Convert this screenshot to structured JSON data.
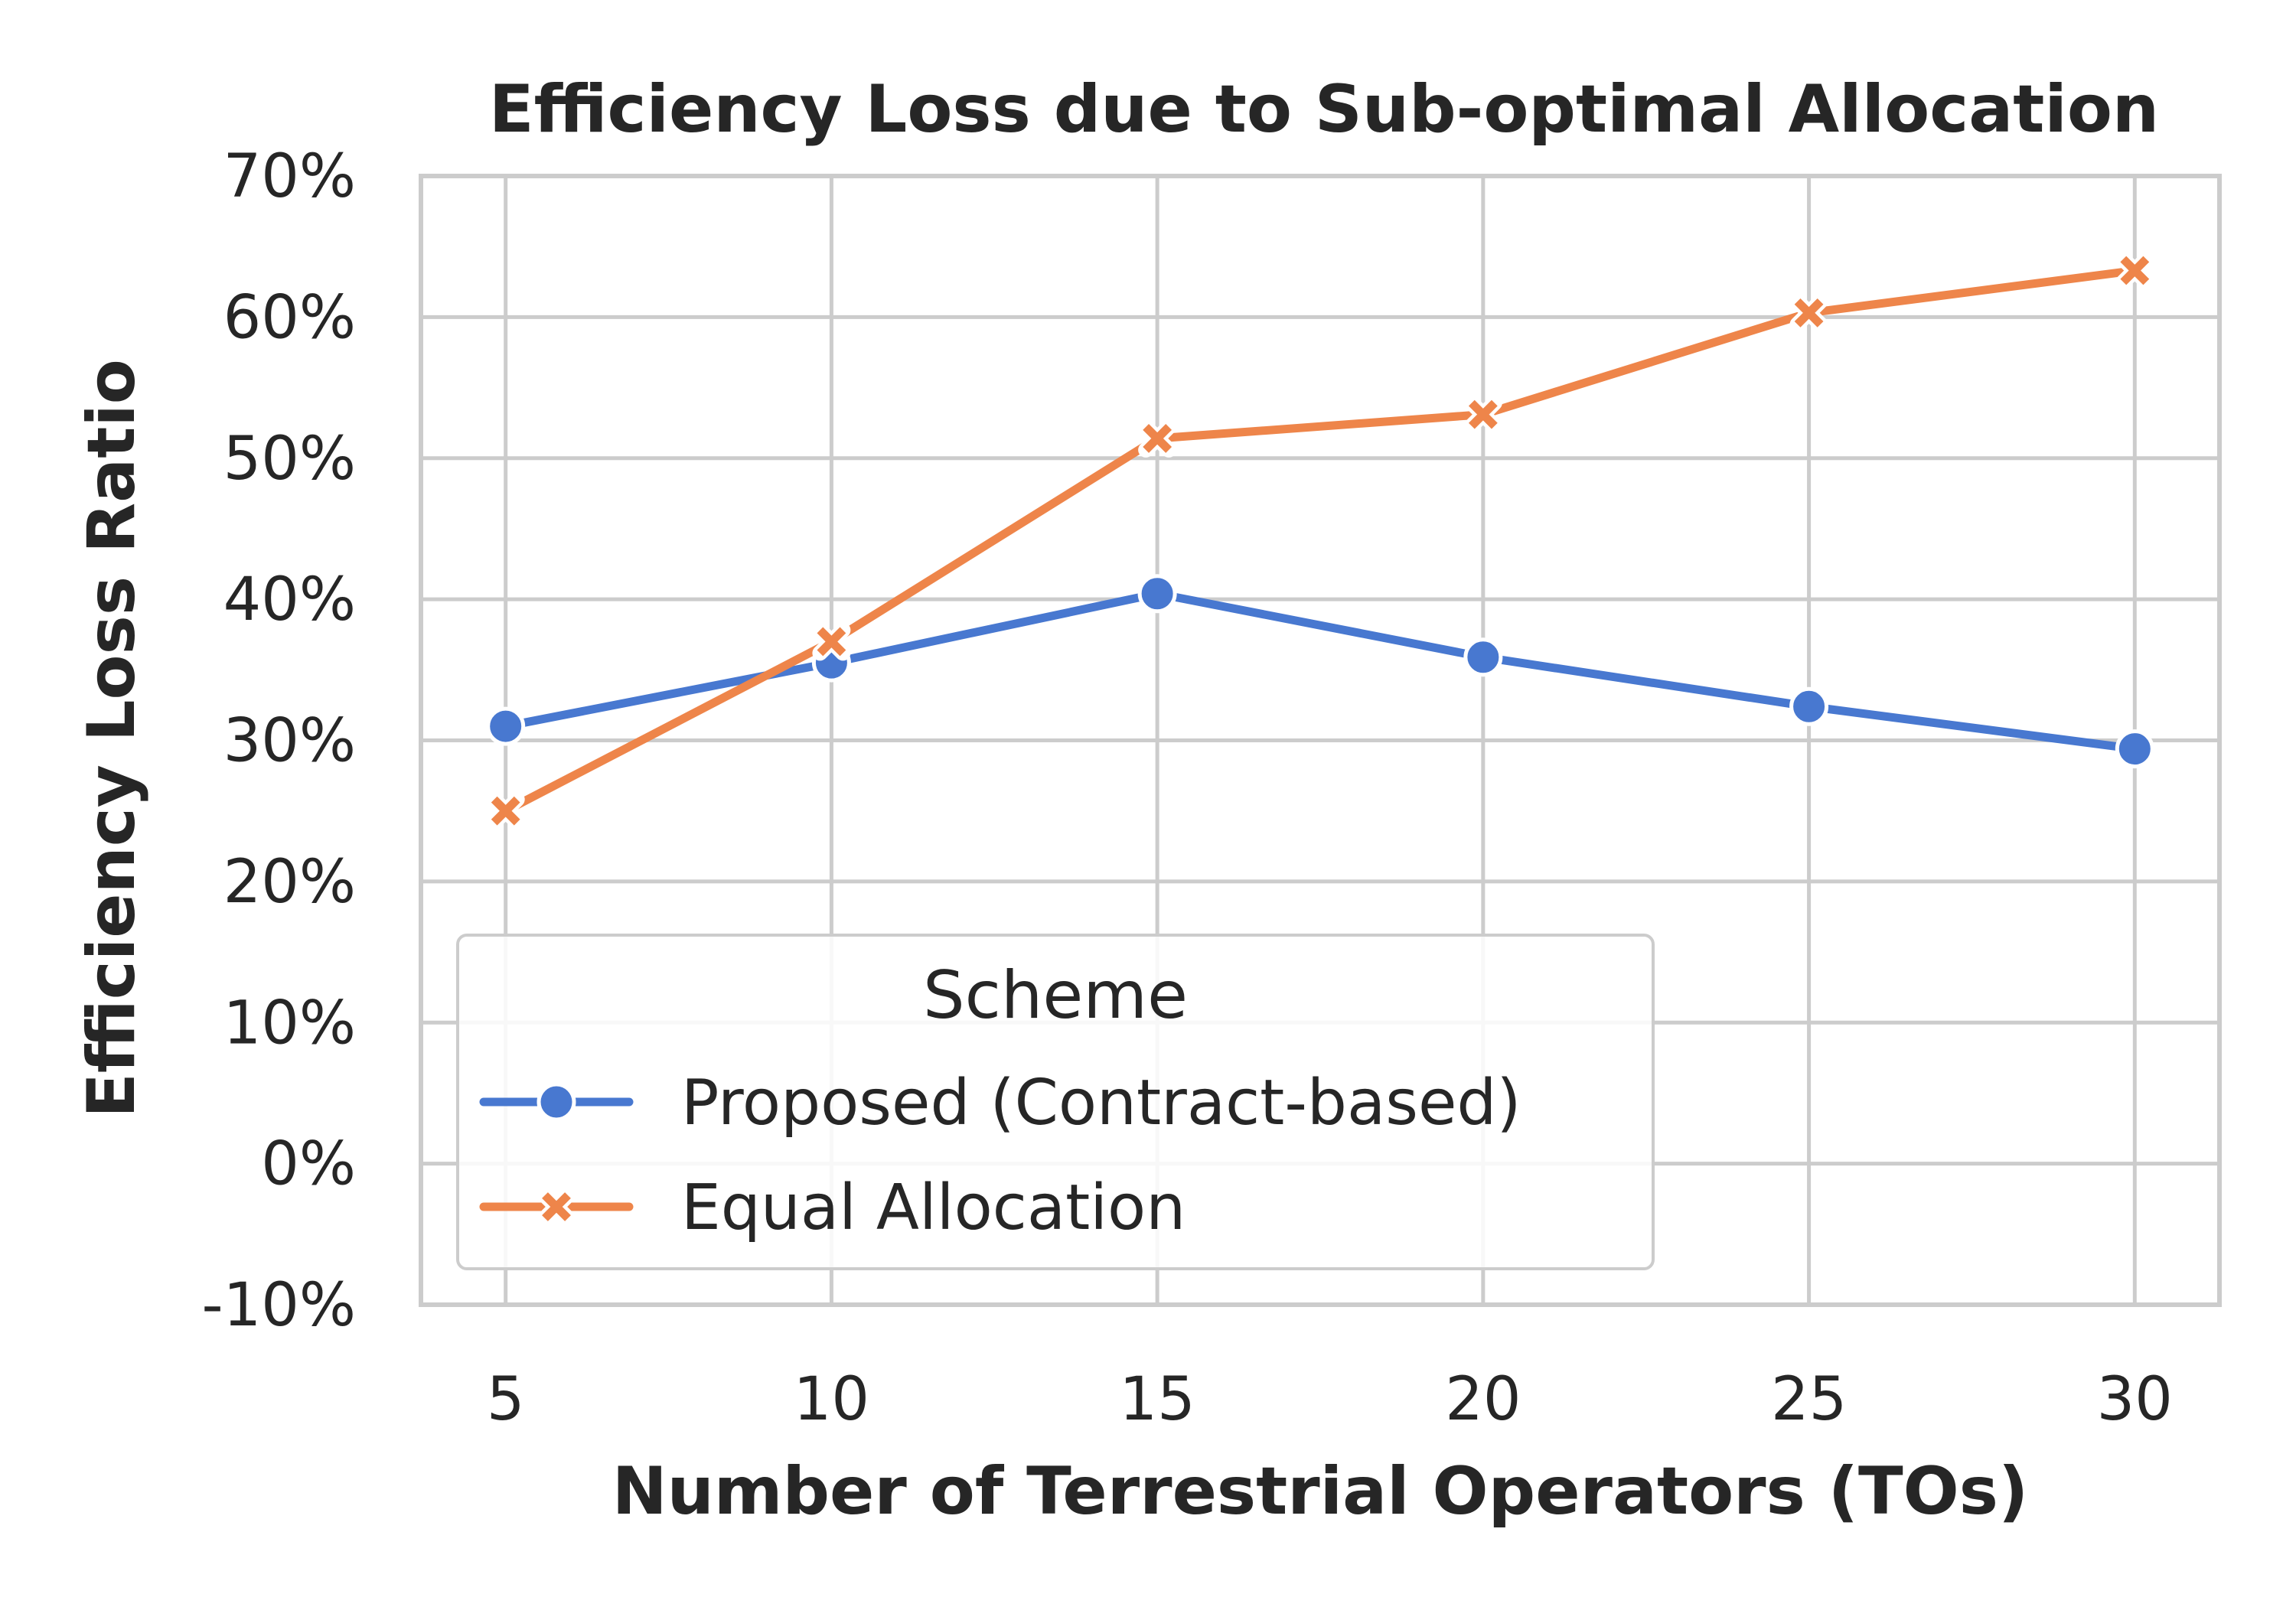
{
  "chart_data": {
    "type": "line",
    "title": "Efficiency Loss due to Sub-optimal Allocation",
    "xlabel": "Number of Terrestrial Operators (TOs)",
    "ylabel": "Efficiency Loss Ratio",
    "x": [
      5,
      10,
      15,
      20,
      25,
      30
    ],
    "xlim": [
      3.7,
      31.3
    ],
    "ylim": [
      -10,
      70
    ],
    "y_ticks": [
      -10,
      0,
      10,
      20,
      30,
      40,
      50,
      60,
      70
    ],
    "y_tick_labels": [
      "-10%",
      "0%",
      "10%",
      "20%",
      "30%",
      "40%",
      "50%",
      "60%",
      "70%"
    ],
    "x_tick_labels": [
      "5",
      "10",
      "15",
      "20",
      "25",
      "30"
    ],
    "grid": true,
    "legend": {
      "title": "Scheme",
      "placement": "lower-left"
    },
    "series": [
      {
        "name": "Proposed (Contract-based)",
        "marker": "circle",
        "color": "#4878d0",
        "values": [
          31.0,
          35.5,
          40.4,
          35.9,
          32.4,
          29.4
        ]
      },
      {
        "name": "Equal Allocation",
        "marker": "x",
        "color": "#ee854a",
        "values": [
          25.0,
          37.0,
          51.4,
          53.1,
          60.3,
          63.3
        ]
      }
    ]
  }
}
